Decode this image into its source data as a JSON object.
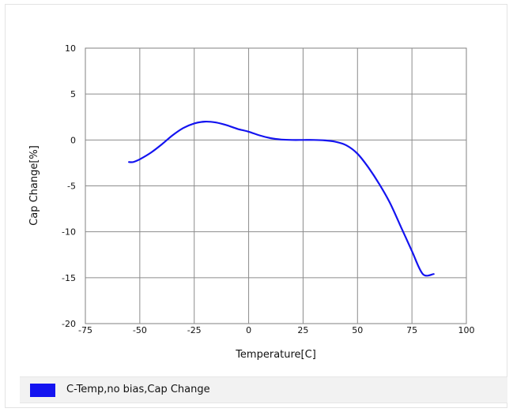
{
  "chart_data": {
    "type": "line",
    "xlabel": "Temperature[C]",
    "ylabel": "Cap Change[%]",
    "xlim": [
      -75,
      100
    ],
    "ylim": [
      -20,
      10
    ],
    "x_ticks": [
      "-75",
      "-50",
      "-25",
      "0",
      "25",
      "50",
      "75",
      "100"
    ],
    "y_ticks": [
      "10",
      "5",
      "0",
      "-5",
      "-10",
      "-15",
      "-20"
    ],
    "grid": true,
    "legend_position": "bottom",
    "series": [
      {
        "name": "C-Temp,no bias,Cap Change",
        "color": "#1414f0",
        "x": [
          -55,
          -53,
          -50,
          -45,
          -40,
          -35,
          -30,
          -25,
          -20,
          -15,
          -10,
          -5,
          0,
          5,
          10,
          15,
          20,
          25,
          30,
          35,
          40,
          45,
          50,
          55,
          60,
          65,
          70,
          75,
          80,
          85
        ],
        "y": [
          -2.4,
          -2.4,
          -2.1,
          -1.4,
          -0.5,
          0.5,
          1.3,
          1.8,
          2.0,
          1.9,
          1.6,
          1.2,
          0.9,
          0.5,
          0.2,
          0.05,
          0.0,
          0.0,
          0.0,
          -0.05,
          -0.2,
          -0.6,
          -1.5,
          -3.0,
          -4.8,
          -6.9,
          -9.5,
          -12.1,
          -14.6,
          -14.6
        ]
      }
    ]
  }
}
